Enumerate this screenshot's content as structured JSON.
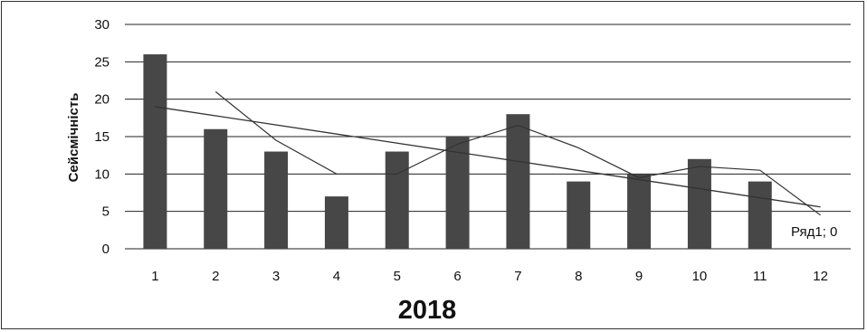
{
  "chart_data": {
    "type": "bar",
    "title": "",
    "xlabel": "2018",
    "ylabel": "Сейсмічність",
    "categories": [
      "1",
      "2",
      "3",
      "4",
      "5",
      "6",
      "7",
      "8",
      "9",
      "10",
      "11",
      "12"
    ],
    "series": [
      {
        "values": [
          26,
          16,
          13,
          7,
          13,
          15,
          18,
          9,
          10,
          12,
          9,
          0
        ]
      }
    ],
    "moving_average": [
      null,
      21,
      14.5,
      10,
      10,
      14,
      16.5,
      13.5,
      9.5,
      11,
      10.5,
      4.5
    ],
    "trendline": {
      "start": 19,
      "end": 5.6
    },
    "ylim": [
      0,
      30
    ],
    "yticks": [
      0,
      5,
      10,
      15,
      20,
      25,
      30
    ],
    "grid": true,
    "legend": "none",
    "annotation": "Ряд1; 0",
    "colors": {
      "bar": "#474747",
      "line": "#333333",
      "grid": "#222222"
    }
  }
}
